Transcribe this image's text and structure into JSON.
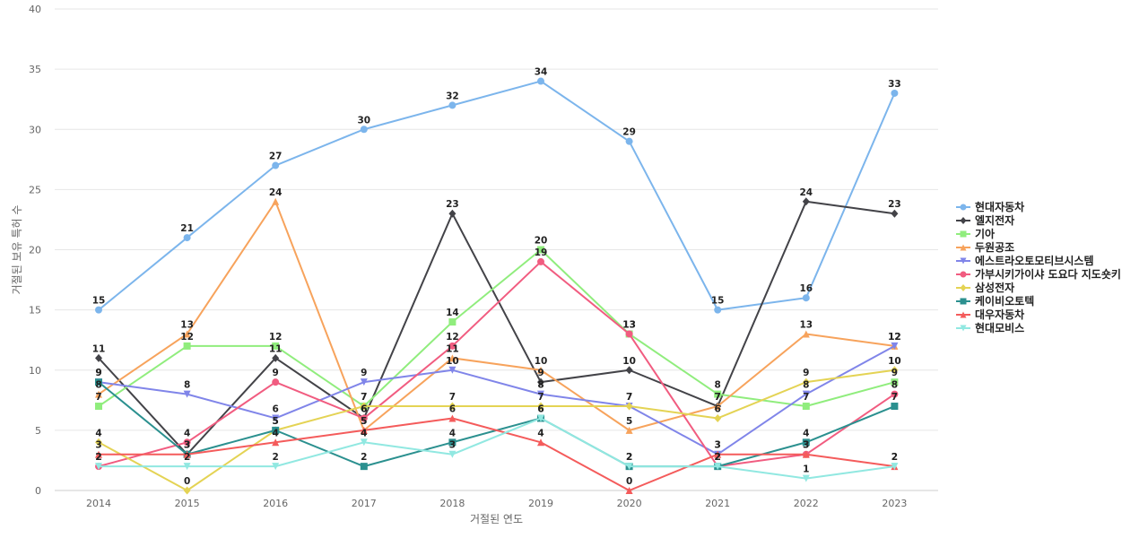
{
  "chart_data": {
    "type": "line",
    "title": "",
    "xlabel": "거절된 연도",
    "ylabel": "거절된 보유 특허 수",
    "ylim": [
      0,
      40
    ],
    "yticks": [
      0,
      5,
      10,
      15,
      20,
      25,
      30,
      35,
      40
    ],
    "grid": true,
    "legend_position": "right",
    "categories": [
      "2014",
      "2015",
      "2016",
      "2017",
      "2018",
      "2019",
      "2020",
      "2021",
      "2022",
      "2023"
    ],
    "series": [
      {
        "name": "현대자동차",
        "color": "#7cb5ec",
        "marker": "circle",
        "values": [
          15,
          21,
          27,
          30,
          32,
          34,
          29,
          15,
          16,
          33
        ]
      },
      {
        "name": "엘지전자",
        "color": "#434348",
        "marker": "diamond",
        "values": [
          11,
          3,
          11,
          6,
          23,
          9,
          10,
          7,
          24,
          23
        ]
      },
      {
        "name": "기아",
        "color": "#90ed7d",
        "marker": "square",
        "values": [
          7,
          12,
          12,
          7,
          14,
          20,
          13,
          8,
          7,
          9
        ]
      },
      {
        "name": "두원공조",
        "color": "#f7a35c",
        "marker": "triangle",
        "values": [
          8,
          13,
          24,
          5,
          11,
          10,
          5,
          7,
          13,
          12
        ]
      },
      {
        "name": "에스트라오토모티브시스템",
        "color": "#8085e9",
        "marker": "triangle-down",
        "values": [
          9,
          8,
          6,
          9,
          10,
          8,
          7,
          3,
          8,
          12
        ]
      },
      {
        "name": "가부시키가이샤 도요다 지도숏키",
        "color": "#f15c80",
        "marker": "circle",
        "values": [
          2,
          4,
          9,
          6,
          12,
          19,
          13,
          2,
          3,
          8
        ]
      },
      {
        "name": "삼성전자",
        "color": "#e4d354",
        "marker": "diamond",
        "values": [
          4,
          0,
          5,
          7,
          7,
          7,
          7,
          6,
          9,
          10
        ]
      },
      {
        "name": "케이비오토텍",
        "color": "#2b908f",
        "marker": "square",
        "values": [
          9,
          3,
          5,
          2,
          4,
          6,
          2,
          2,
          4,
          7
        ]
      },
      {
        "name": "대우자동차",
        "color": "#f45b5b",
        "marker": "triangle",
        "values": [
          3,
          3,
          4,
          5,
          6,
          4,
          0,
          3,
          3,
          2
        ]
      },
      {
        "name": "현대모비스",
        "color": "#91e8e1",
        "marker": "triangle-down",
        "values": [
          2,
          2,
          2,
          4,
          3,
          6,
          2,
          2,
          1,
          2
        ]
      }
    ]
  }
}
